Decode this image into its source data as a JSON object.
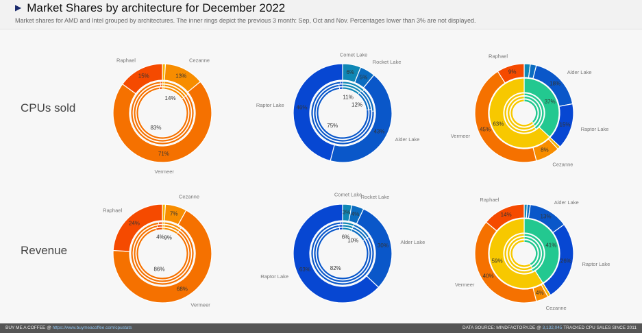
{
  "header": {
    "title": "Market Shares by architecture for December 2022",
    "subtitle": "Market shares for AMD and Intel grouped by architectures. The inner rings depict the previous 3 month: Sep, Oct and Nov. Percentages lower than 3% are not displayed."
  },
  "rows": [
    "CPUs sold",
    "Revenue"
  ],
  "footer": {
    "left_text": "BUY ME A COFFEE @ ",
    "left_link": "https://www.buymeacoffee.com/cpustats",
    "right_text": "DATA SOURCE: MINDFACTORY.DE @ ",
    "right_count": "3,132,045",
    "right_suffix": " TRACKED CPU SALES SINCE 2011"
  },
  "colors": {
    "Other AMD": "#f5b300",
    "Cezanne": "#f78d00",
    "Vermeer": "#f57100",
    "Raphael": "#f54a00",
    "Comet Lake": "#0f87b5",
    "Rocket Lake": "#0b6cc0",
    "Alder Lake": "#0a57c9",
    "Raptor Lake": "#0747d2",
    "Other Intel": "#1a9ad0",
    "AMD": "#f7c800",
    "Intel": "#23c890"
  },
  "chart_data": [
    {
      "type": "pie",
      "row": "CPUs sold",
      "group": "AMD",
      "series": [
        "Other AMD",
        "Cezanne",
        "Vermeer",
        "Raphael"
      ],
      "values": [
        1,
        13,
        71,
        15
      ],
      "labels": [
        "",
        "13%",
        "71%",
        "15%"
      ],
      "names": [
        "",
        "Cezanne",
        "Vermeer",
        "Raphael"
      ],
      "months": [
        {
          "month": "Sep",
          "values": [
            1,
            14,
            84,
            1
          ]
        },
        {
          "month": "Oct",
          "values": [
            1,
            14,
            84,
            1
          ]
        },
        {
          "month": "Nov",
          "values": [
            1,
            14,
            83,
            2
          ]
        }
      ],
      "inner_labels": [
        {
          "series": 1,
          "text": "14%"
        },
        {
          "series": 2,
          "text": "83%"
        }
      ]
    },
    {
      "type": "pie",
      "row": "CPUs sold",
      "group": "Intel",
      "series": [
        "Comet Lake",
        "Rocket Lake",
        "Alder Lake",
        "Raptor Lake"
      ],
      "values": [
        6,
        5,
        43,
        46
      ],
      "labels": [
        "6%",
        "5%",
        "43%",
        "46%"
      ],
      "names": [
        "Comet Lake",
        "Rocket Lake",
        "Alder Lake",
        "Raptor Lake"
      ],
      "months": [
        {
          "month": "Sep",
          "values": [
            12,
            12,
            75,
            1
          ]
        },
        {
          "month": "Oct",
          "values": [
            11,
            12,
            75,
            2
          ]
        },
        {
          "month": "Nov",
          "values": [
            11,
            12,
            75,
            2
          ]
        }
      ],
      "inner_labels": [
        {
          "series": 0,
          "text": "11%"
        },
        {
          "series": 1,
          "text": "12%"
        },
        {
          "series": 2,
          "text": "75%"
        }
      ]
    },
    {
      "type": "pie",
      "row": "CPUs sold",
      "group": "AMD vs Intel",
      "series": [
        "Comet Lake",
        "Rocket Lake",
        "Alder Lake",
        "Raptor Lake",
        "Other AMD",
        "Cezanne",
        "Vermeer",
        "Raphael"
      ],
      "values": [
        2,
        2,
        18,
        15,
        1,
        8,
        45,
        9
      ],
      "labels": [
        "",
        "",
        "18%",
        "15%",
        "",
        "8%",
        "45%",
        "9%"
      ],
      "names": [
        "",
        "",
        "Alder Lake",
        "Raptor Lake",
        "",
        "Cezanne",
        "Vermeer",
        "Raphael"
      ],
      "vendor": {
        "series": [
          "Intel",
          "AMD"
        ],
        "values": [
          37,
          63
        ],
        "labels": [
          "37%",
          "63%"
        ]
      },
      "months": [
        {
          "month": "Sep",
          "values": [
            40,
            60
          ]
        },
        {
          "month": "Oct",
          "values": [
            39,
            61
          ]
        },
        {
          "month": "Nov",
          "values": [
            38,
            62
          ]
        }
      ]
    },
    {
      "type": "pie",
      "row": "Revenue",
      "group": "AMD",
      "series": [
        "Other AMD",
        "Cezanne",
        "Vermeer",
        "Raphael"
      ],
      "values": [
        1,
        7,
        68,
        24
      ],
      "labels": [
        "",
        "7%",
        "68%",
        "24%"
      ],
      "names": [
        "",
        "Cezanne",
        "Vermeer",
        "Raphael"
      ],
      "months": [
        {
          "month": "Sep",
          "values": [
            1,
            9,
            88,
            2
          ]
        },
        {
          "month": "Oct",
          "values": [
            1,
            9,
            87,
            3
          ]
        },
        {
          "month": "Nov",
          "values": [
            1,
            9,
            86,
            4
          ]
        }
      ],
      "inner_labels": [
        {
          "series": 3,
          "text": "4%"
        },
        {
          "series": 1,
          "text": "9%"
        },
        {
          "series": 2,
          "text": "86%"
        }
      ]
    },
    {
      "type": "pie",
      "row": "Revenue",
      "group": "Intel",
      "series": [
        "Comet Lake",
        "Rocket Lake",
        "Alder Lake",
        "Raptor Lake"
      ],
      "values": [
        3,
        4,
        30,
        63
      ],
      "labels": [
        "3%",
        "4%",
        "30%",
        "63%"
      ],
      "names": [
        "Comet Lake",
        "Rocket Lake",
        "",
        "Raptor Lake"
      ],
      "names_extra": {
        "2": "Alder Lake"
      },
      "months": [
        {
          "month": "Sep",
          "values": [
            6,
            10,
            83,
            1
          ]
        },
        {
          "month": "Oct",
          "values": [
            6,
            10,
            82,
            2
          ]
        },
        {
          "month": "Nov",
          "values": [
            6,
            10,
            82,
            2
          ]
        }
      ],
      "inner_labels": [
        {
          "series": 0,
          "text": "6%"
        },
        {
          "series": 1,
          "text": "10%"
        },
        {
          "series": 2,
          "text": "82%"
        }
      ]
    },
    {
      "type": "pie",
      "row": "Revenue",
      "group": "AMD vs Intel",
      "series": [
        "Comet Lake",
        "Rocket Lake",
        "Alder Lake",
        "Raptor Lake",
        "Other AMD",
        "Cezanne",
        "Vermeer",
        "Raphael"
      ],
      "values": [
        1,
        1,
        13,
        26,
        1,
        4,
        40,
        14
      ],
      "labels": [
        "",
        "",
        "13%",
        "26%",
        "",
        "4%",
        "40%",
        "14%"
      ],
      "names": [
        "",
        "",
        "Alder Lake",
        "Raptor Lake",
        "",
        "Cezanne",
        "Vermeer",
        "Raphael"
      ],
      "vendor": {
        "series": [
          "Intel",
          "AMD"
        ],
        "values": [
          41,
          59
        ],
        "labels": [
          "41%",
          "59%"
        ]
      },
      "months": [
        {
          "month": "Sep",
          "values": [
            43,
            57
          ]
        },
        {
          "month": "Oct",
          "values": [
            42,
            58
          ]
        },
        {
          "month": "Nov",
          "values": [
            42,
            58
          ]
        }
      ]
    }
  ]
}
